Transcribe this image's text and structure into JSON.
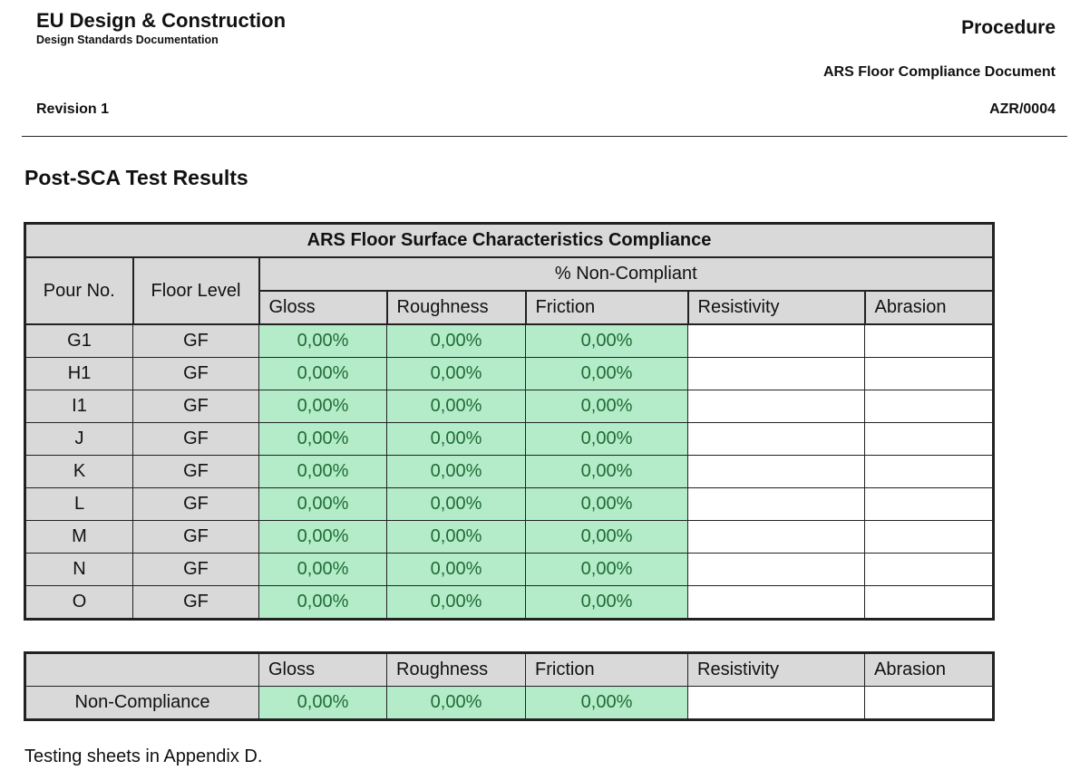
{
  "header": {
    "company": "EU Design & Construction",
    "subtitle": "Design Standards Documentation",
    "revision": "Revision 1",
    "doc_type": "Procedure",
    "doc_title": "ARS Floor Compliance Document",
    "doc_code": "AZR/0004"
  },
  "section_title": "Post-SCA Test Results",
  "main_table": {
    "title": "ARS Floor Surface Characteristics Compliance",
    "col_pour": "Pour No.",
    "col_floor": "Floor Level",
    "group_header": "% Non-Compliant",
    "metrics": [
      "Gloss",
      "Roughness",
      "Friction",
      "Resistivity",
      "Abrasion"
    ],
    "rows": [
      {
        "pour": "G1",
        "floor": "GF",
        "gloss": "0,00%",
        "roughness": "0,00%",
        "friction": "0,00%",
        "resistivity": "",
        "abrasion": ""
      },
      {
        "pour": "H1",
        "floor": "GF",
        "gloss": "0,00%",
        "roughness": "0,00%",
        "friction": "0,00%",
        "resistivity": "",
        "abrasion": ""
      },
      {
        "pour": "I1",
        "floor": "GF",
        "gloss": "0,00%",
        "roughness": "0,00%",
        "friction": "0,00%",
        "resistivity": "",
        "abrasion": ""
      },
      {
        "pour": "J",
        "floor": "GF",
        "gloss": "0,00%",
        "roughness": "0,00%",
        "friction": "0,00%",
        "resistivity": "",
        "abrasion": ""
      },
      {
        "pour": "K",
        "floor": "GF",
        "gloss": "0,00%",
        "roughness": "0,00%",
        "friction": "0,00%",
        "resistivity": "",
        "abrasion": ""
      },
      {
        "pour": "L",
        "floor": "GF",
        "gloss": "0,00%",
        "roughness": "0,00%",
        "friction": "0,00%",
        "resistivity": "",
        "abrasion": ""
      },
      {
        "pour": "M",
        "floor": "GF",
        "gloss": "0,00%",
        "roughness": "0,00%",
        "friction": "0,00%",
        "resistivity": "",
        "abrasion": ""
      },
      {
        "pour": "N",
        "floor": "GF",
        "gloss": "0,00%",
        "roughness": "0,00%",
        "friction": "0,00%",
        "resistivity": "",
        "abrasion": ""
      },
      {
        "pour": "O",
        "floor": "GF",
        "gloss": "0,00%",
        "roughness": "0,00%",
        "friction": "0,00%",
        "resistivity": "",
        "abrasion": ""
      }
    ]
  },
  "summary_table": {
    "metrics": [
      "Gloss",
      "Roughness",
      "Friction",
      "Resistivity",
      "Abrasion"
    ],
    "row_label": "Non-Compliance",
    "values": [
      "0,00%",
      "0,00%",
      "0,00%",
      "",
      ""
    ]
  },
  "footer_note": "Testing sheets in Appendix D.",
  "colors": {
    "header_gray": "#d9d9d9",
    "compliant_green": "#b4ecca",
    "value_text": "#1f6b33"
  }
}
